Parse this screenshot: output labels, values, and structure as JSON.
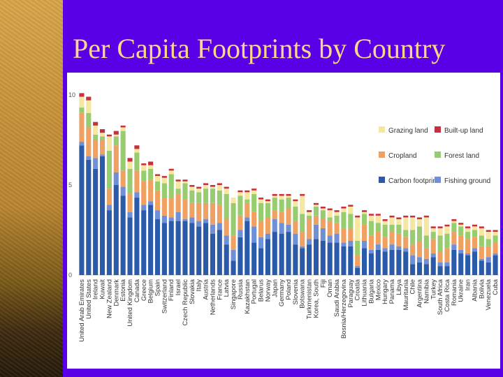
{
  "slide": {
    "title": "Per Capita Footprints by Country"
  },
  "chart_data": {
    "type": "bar",
    "stacked": true,
    "ylim": [
      0,
      10
    ],
    "yticks": [
      0,
      5,
      10
    ],
    "legend_position": "top-right",
    "categories": [
      "United Arab Emirates",
      "United States",
      "Ireland",
      "Kuwait",
      "New Zealand",
      "Denmark",
      "Estonia",
      "United Kingdom",
      "Canada",
      "Greece",
      "Belgium",
      "Spain",
      "Switzerland",
      "Finland",
      "Israel",
      "Czech Republic",
      "Slovakia",
      "Italy",
      "Austria",
      "Netherlands",
      "France",
      "Latvia",
      "Singapore",
      "Russia",
      "Kazakhstan",
      "Portugal",
      "Belarus",
      "Norway",
      "Japan",
      "Germany",
      "Poland",
      "Slovenia",
      "Botswana",
      "Turkmenistan",
      "Korea, South",
      "Fiji",
      "Oman",
      "Saudi Arabia",
      "Bosnia/Herzegovina",
      "Paraguay",
      "Croatia",
      "Lithuania",
      "Bulgaria",
      "Mexico",
      "Hungary",
      "Panama",
      "Libya",
      "Mauritania",
      "Chile",
      "Argentina",
      "Namibia",
      "Turkey",
      "South Africa",
      "Costa Rica",
      "Romania",
      "Ukraine",
      "Iran",
      "Albania",
      "Bolivia",
      "Venezuela",
      "Cuba"
    ],
    "series": [
      {
        "name": "Carbon footprint",
        "color": "#2a5aa8",
        "values": [
          7.2,
          6.4,
          5.9,
          6.6,
          3.6,
          5.0,
          4.4,
          3.2,
          4.3,
          3.6,
          3.9,
          3.1,
          2.9,
          3.0,
          3.0,
          3.0,
          2.9,
          2.7,
          2.9,
          2.3,
          2.5,
          1.7,
          0.8,
          2.1,
          3.0,
          1.8,
          1.5,
          2.0,
          2.4,
          2.3,
          2.4,
          1.7,
          1.5,
          1.7,
          2.0,
          1.9,
          1.8,
          1.8,
          1.6,
          1.6,
          0.4,
          1.5,
          1.2,
          1.4,
          1.3,
          1.4,
          1.4,
          1.3,
          0.6,
          0.7,
          0.6,
          1.0,
          0.5,
          0.5,
          1.4,
          1.2,
          1.1,
          1.3,
          0.8,
          0.7,
          1.1
        ]
      },
      {
        "name": "Fishing ground",
        "color": "#6f8fd6",
        "values": [
          0.2,
          0.2,
          0.6,
          0.1,
          0.3,
          0.7,
          0.5,
          0.3,
          0.3,
          0.3,
          0.2,
          0.5,
          0.4,
          0.2,
          0.5,
          0.1,
          0.3,
          0.3,
          0.2,
          0.5,
          0.4,
          0.5,
          0.6,
          0.4,
          0.2,
          0.9,
          0.6,
          0.3,
          0.7,
          0.6,
          0.4,
          0.6,
          0.1,
          0.3,
          0.8,
          0.7,
          0.4,
          0.5,
          0.2,
          0.3,
          0.1,
          0.4,
          0.2,
          0.3,
          0.2,
          0.3,
          0.2,
          0.2,
          0.5,
          0.3,
          0.3,
          0.2,
          0.2,
          0.2,
          0.3,
          0.2,
          0.1,
          0.2,
          0.1,
          0.3,
          0.1
        ]
      },
      {
        "name": "Cropland",
        "color": "#f0a060",
        "values": [
          1.6,
          1.6,
          1.0,
          0.8,
          0.9,
          1.5,
          0.9,
          1.0,
          1.2,
          1.3,
          1.2,
          1.1,
          1.0,
          1.1,
          1.0,
          1.1,
          0.8,
          1.0,
          0.9,
          1.2,
          1.0,
          0.9,
          0.8,
          0.8,
          0.8,
          0.8,
          0.9,
          0.9,
          0.5,
          0.6,
          0.9,
          0.7,
          0.8,
          1.1,
          0.5,
          0.5,
          0.8,
          0.6,
          0.8,
          0.7,
          0.6,
          0.9,
          0.8,
          0.7,
          0.6,
          0.7,
          0.7,
          0.6,
          0.6,
          0.9,
          0.6,
          0.8,
          0.6,
          0.8,
          0.7,
          0.8,
          0.8,
          0.6,
          0.7,
          0.6,
          0.6
        ]
      },
      {
        "name": "Forest land",
        "color": "#98cc70",
        "values": [
          0.3,
          0.8,
          0.3,
          0.2,
          2.1,
          0.5,
          2.2,
          1.4,
          1.0,
          0.6,
          0.6,
          0.5,
          0.8,
          1.3,
          0.3,
          0.9,
          0.7,
          0.6,
          0.8,
          0.8,
          0.8,
          1.4,
          1.8,
          1.1,
          0.2,
          1.0,
          1.0,
          0.8,
          0.7,
          0.7,
          0.6,
          0.8,
          1.0,
          0.2,
          0.5,
          0.5,
          0.2,
          0.4,
          0.9,
          0.8,
          0.8,
          0.6,
          0.8,
          0.5,
          0.7,
          0.4,
          0.5,
          0.4,
          0.8,
          0.8,
          0.7,
          0.4,
          0.9,
          0.8,
          0.5,
          0.5,
          0.4,
          0.4,
          0.6,
          0.4,
          0.4
        ]
      },
      {
        "name": "Grazing land",
        "color": "#f5e6a0",
        "values": [
          0.6,
          0.7,
          0.5,
          0.2,
          0.8,
          0.1,
          0.2,
          0.4,
          0.2,
          0.3,
          0.2,
          0.3,
          0.3,
          0.2,
          0.4,
          0.1,
          0.2,
          0.2,
          0.2,
          0.1,
          0.3,
          0.3,
          0.3,
          0.2,
          0.4,
          0.2,
          0.2,
          0.1,
          0.1,
          0.2,
          0.1,
          0.3,
          1.0,
          0.2,
          0.1,
          0.1,
          0.4,
          0.2,
          0.2,
          0.4,
          1.3,
          0.1,
          0.3,
          0.4,
          0.2,
          0.4,
          0.3,
          0.7,
          0.7,
          0.4,
          1.0,
          0.2,
          0.4,
          0.4,
          0.1,
          0.1,
          0.2,
          0.2,
          0.4,
          0.4,
          0.2
        ]
      },
      {
        "name": "Built-up land",
        "color": "#c83040",
        "values": [
          0.2,
          0.2,
          0.2,
          0.2,
          0.1,
          0.2,
          0.1,
          0.2,
          0.2,
          0.1,
          0.2,
          0.1,
          0.1,
          0.1,
          0.1,
          0.1,
          0.1,
          0.1,
          0.1,
          0.1,
          0.1,
          0.1,
          0.0,
          0.1,
          0.1,
          0.1,
          0.1,
          0.1,
          0.1,
          0.1,
          0.1,
          0.1,
          0.1,
          0.1,
          0.1,
          0.1,
          0.1,
          0.1,
          0.1,
          0.1,
          0.1,
          0.1,
          0.1,
          0.1,
          0.1,
          0.1,
          0.1,
          0.1,
          0.1,
          0.1,
          0.1,
          0.1,
          0.1,
          0.1,
          0.1,
          0.1,
          0.1,
          0.1,
          0.1,
          0.1,
          0.1
        ]
      }
    ]
  }
}
